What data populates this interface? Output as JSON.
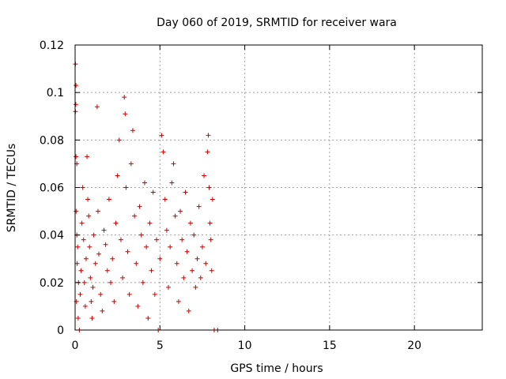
{
  "chart_data": {
    "type": "scatter",
    "title": "Day 060 of 2019, SRMTID for receiver wara",
    "xlabel": "GPS time / hours",
    "ylabel": "SRMTID / TECUs",
    "xlim": [
      0,
      24
    ],
    "ylim": [
      0,
      0.12
    ],
    "x_ticks": [
      0,
      5,
      10,
      15,
      20
    ],
    "x_tick_labels": [
      "0",
      "5",
      "10",
      "15",
      "20"
    ],
    "y_ticks": [
      0,
      0.02,
      0.04,
      0.06,
      0.08,
      0.1,
      0.12
    ],
    "y_tick_labels": [
      "0",
      "0.02",
      "0.04",
      "0.06",
      "0.08",
      "0.1",
      "0.12"
    ],
    "grid": true,
    "marker": "+",
    "series": [
      {
        "name": "SRMTID",
        "color": "#cc0000",
        "points": [
          [
            0.02,
            0.112
          ],
          [
            0.05,
            0.103
          ],
          [
            0.04,
            0.095
          ],
          [
            0.02,
            0.092
          ],
          [
            0.05,
            0.073
          ],
          [
            0.1,
            0.07
          ],
          [
            0.06,
            0.05
          ],
          [
            0.1,
            0.04
          ],
          [
            0.15,
            0.035
          ],
          [
            0.12,
            0.028
          ],
          [
            0.2,
            0.02
          ],
          [
            0.08,
            0.012
          ],
          [
            0.18,
            0.005
          ],
          [
            0.25,
            0.0
          ],
          [
            0.3,
            0.015
          ],
          [
            0.35,
            0.025
          ],
          [
            0.4,
            0.045
          ],
          [
            0.45,
            0.06
          ],
          [
            0.5,
            0.038
          ],
          [
            0.55,
            0.02
          ],
          [
            0.6,
            0.01
          ],
          [
            0.65,
            0.03
          ],
          [
            0.7,
            0.073
          ],
          [
            0.75,
            0.055
          ],
          [
            0.8,
            0.048
          ],
          [
            0.85,
            0.035
          ],
          [
            0.9,
            0.022
          ],
          [
            0.95,
            0.012
          ],
          [
            1.0,
            0.005
          ],
          [
            1.05,
            0.018
          ],
          [
            1.1,
            0.04
          ],
          [
            1.2,
            0.028
          ],
          [
            1.3,
            0.094
          ],
          [
            1.35,
            0.05
          ],
          [
            1.4,
            0.032
          ],
          [
            1.5,
            0.015
          ],
          [
            1.6,
            0.008
          ],
          [
            1.7,
            0.042
          ],
          [
            1.8,
            0.036
          ],
          [
            1.9,
            0.025
          ],
          [
            2.0,
            0.055
          ],
          [
            2.1,
            0.02
          ],
          [
            2.2,
            0.03
          ],
          [
            2.3,
            0.012
          ],
          [
            2.4,
            0.045
          ],
          [
            2.5,
            0.065
          ],
          [
            2.6,
            0.08
          ],
          [
            2.7,
            0.038
          ],
          [
            2.8,
            0.022
          ],
          [
            2.9,
            0.098
          ],
          [
            2.95,
            0.091
          ],
          [
            3.0,
            0.06
          ],
          [
            3.1,
            0.033
          ],
          [
            3.2,
            0.015
          ],
          [
            3.3,
            0.07
          ],
          [
            3.4,
            0.084
          ],
          [
            3.5,
            0.048
          ],
          [
            3.6,
            0.028
          ],
          [
            3.7,
            0.01
          ],
          [
            3.8,
            0.052
          ],
          [
            3.9,
            0.04
          ],
          [
            4.0,
            0.02
          ],
          [
            4.1,
            0.062
          ],
          [
            4.2,
            0.035
          ],
          [
            4.3,
            0.005
          ],
          [
            4.4,
            0.045
          ],
          [
            4.5,
            0.025
          ],
          [
            4.6,
            0.058
          ],
          [
            4.7,
            0.015
          ],
          [
            4.8,
            0.038
          ],
          [
            4.9,
            0.0
          ],
          [
            5.0,
            0.03
          ],
          [
            5.1,
            0.082
          ],
          [
            5.2,
            0.075
          ],
          [
            5.3,
            0.055
          ],
          [
            5.4,
            0.042
          ],
          [
            5.5,
            0.018
          ],
          [
            5.6,
            0.035
          ],
          [
            5.7,
            0.062
          ],
          [
            5.8,
            0.07
          ],
          [
            5.9,
            0.048
          ],
          [
            6.0,
            0.028
          ],
          [
            6.1,
            0.012
          ],
          [
            6.2,
            0.05
          ],
          [
            6.3,
            0.038
          ],
          [
            6.4,
            0.022
          ],
          [
            6.5,
            0.058
          ],
          [
            6.6,
            0.033
          ],
          [
            6.7,
            0.008
          ],
          [
            6.8,
            0.045
          ],
          [
            6.9,
            0.025
          ],
          [
            7.0,
            0.04
          ],
          [
            7.1,
            0.018
          ],
          [
            7.2,
            0.03
          ],
          [
            7.3,
            0.052
          ],
          [
            7.4,
            0.022
          ],
          [
            7.5,
            0.035
          ],
          [
            7.6,
            0.065
          ],
          [
            7.7,
            0.028
          ],
          [
            7.8,
            0.075
          ],
          [
            7.85,
            0.082
          ],
          [
            7.9,
            0.06
          ],
          [
            7.95,
            0.045
          ],
          [
            8.0,
            0.038
          ],
          [
            8.05,
            0.025
          ],
          [
            8.1,
            0.055
          ],
          [
            8.2,
            0.0
          ],
          [
            8.4,
            0.0
          ]
        ]
      }
    ]
  }
}
